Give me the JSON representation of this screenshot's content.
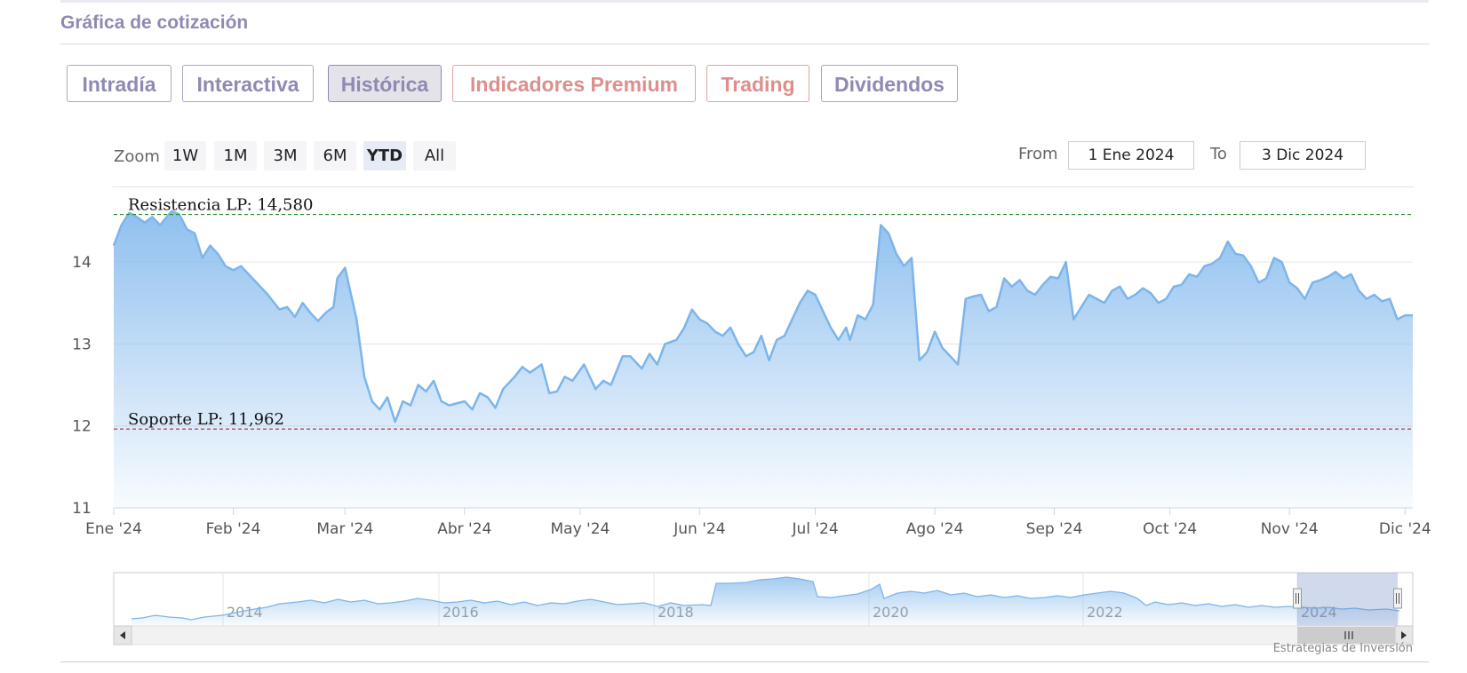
{
  "section": {
    "title": "Gráfica de cotización"
  },
  "tabs": [
    {
      "label": "Intradía",
      "style": "normal"
    },
    {
      "label": "Interactiva",
      "style": "normal"
    },
    {
      "label": "Histórica",
      "style": "active"
    },
    {
      "label": "Indicadores Premium",
      "style": "premium"
    },
    {
      "label": "Trading",
      "style": "premium"
    },
    {
      "label": "Dividendos",
      "style": "normal"
    }
  ],
  "range_selector": {
    "zoom_label": "Zoom",
    "buttons": [
      "1W",
      "1M",
      "3M",
      "6M",
      "YTD",
      "All"
    ],
    "selected": "YTD",
    "from_label": "From",
    "from_value": "1 Ene 2024",
    "to_label": "To",
    "to_value": "3 Dic 2024"
  },
  "colors": {
    "line": "#7cb5ec",
    "resistance": "#2e8b2e",
    "support": "#b22234",
    "tab_text": "#8e8ab3",
    "premium_text": "#dd8f8c"
  },
  "credit": "Estrategias de Inversión",
  "chart_data": {
    "type": "area",
    "title": "",
    "xlabel": "",
    "ylabel": "",
    "ylim": [
      11,
      14.9
    ],
    "y_ticks": [
      "11",
      "12",
      "13",
      "14"
    ],
    "x_ticks": [
      "Ene '24",
      "Feb '24",
      "Mar '24",
      "Abr '24",
      "May '24",
      "Jun '24",
      "Jul '24",
      "Ago '24",
      "Sep '24",
      "Oct '24",
      "Nov '24",
      "Dic '24"
    ],
    "x_start": "2024-01-01",
    "x_end": "2024-12-03",
    "grid": true,
    "annotations": [
      {
        "label": "Resistencia LP: 14,580",
        "value": 14.58,
        "kind": "resistance"
      },
      {
        "label": "Soporte LP: 11,962",
        "value": 11.962,
        "kind": "support"
      }
    ],
    "series": [
      {
        "points": [
          [
            "2024-01-01",
            14.2
          ],
          [
            "2024-01-03",
            14.45
          ],
          [
            "2024-01-05",
            14.6
          ],
          [
            "2024-01-07",
            14.55
          ],
          [
            "2024-01-09",
            14.48
          ],
          [
            "2024-01-11",
            14.55
          ],
          [
            "2024-01-13",
            14.45
          ],
          [
            "2024-01-16",
            14.62
          ],
          [
            "2024-01-18",
            14.58
          ],
          [
            "2024-01-20",
            14.4
          ],
          [
            "2024-01-22",
            14.35
          ],
          [
            "2024-01-24",
            14.05
          ],
          [
            "2024-01-26",
            14.2
          ],
          [
            "2024-01-28",
            14.1
          ],
          [
            "2024-01-30",
            13.95
          ],
          [
            "2024-02-01",
            13.9
          ],
          [
            "2024-02-03",
            13.95
          ],
          [
            "2024-02-05",
            13.85
          ],
          [
            "2024-02-08",
            13.7
          ],
          [
            "2024-02-10",
            13.6
          ],
          [
            "2024-02-13",
            13.42
          ],
          [
            "2024-02-15",
            13.45
          ],
          [
            "2024-02-17",
            13.33
          ],
          [
            "2024-02-19",
            13.5
          ],
          [
            "2024-02-21",
            13.38
          ],
          [
            "2024-02-23",
            13.28
          ],
          [
            "2024-02-25",
            13.38
          ],
          [
            "2024-02-27",
            13.45
          ],
          [
            "2024-02-28",
            13.8
          ],
          [
            "2024-03-01",
            13.93
          ],
          [
            "2024-03-04",
            13.3
          ],
          [
            "2024-03-06",
            12.6
          ],
          [
            "2024-03-08",
            12.3
          ],
          [
            "2024-03-10",
            12.2
          ],
          [
            "2024-03-12",
            12.35
          ],
          [
            "2024-03-14",
            12.05
          ],
          [
            "2024-03-16",
            12.3
          ],
          [
            "2024-03-18",
            12.25
          ],
          [
            "2024-03-20",
            12.5
          ],
          [
            "2024-03-22",
            12.42
          ],
          [
            "2024-03-24",
            12.55
          ],
          [
            "2024-03-26",
            12.3
          ],
          [
            "2024-03-28",
            12.25
          ],
          [
            "2024-04-01",
            12.3
          ],
          [
            "2024-04-03",
            12.2
          ],
          [
            "2024-04-05",
            12.4
          ],
          [
            "2024-04-07",
            12.35
          ],
          [
            "2024-04-09",
            12.22
          ],
          [
            "2024-04-11",
            12.45
          ],
          [
            "2024-04-14",
            12.6
          ],
          [
            "2024-04-16",
            12.72
          ],
          [
            "2024-04-18",
            12.65
          ],
          [
            "2024-04-21",
            12.75
          ],
          [
            "2024-04-23",
            12.4
          ],
          [
            "2024-04-25",
            12.42
          ],
          [
            "2024-04-27",
            12.6
          ],
          [
            "2024-04-29",
            12.55
          ],
          [
            "2024-05-02",
            12.75
          ],
          [
            "2024-05-05",
            12.45
          ],
          [
            "2024-05-07",
            12.55
          ],
          [
            "2024-05-09",
            12.5
          ],
          [
            "2024-05-12",
            12.85
          ],
          [
            "2024-05-14",
            12.85
          ],
          [
            "2024-05-17",
            12.7
          ],
          [
            "2024-05-19",
            12.88
          ],
          [
            "2024-05-21",
            12.75
          ],
          [
            "2024-05-23",
            13.0
          ],
          [
            "2024-05-26",
            13.05
          ],
          [
            "2024-05-28",
            13.2
          ],
          [
            "2024-05-30",
            13.42
          ],
          [
            "2024-06-01",
            13.3
          ],
          [
            "2024-06-03",
            13.25
          ],
          [
            "2024-06-05",
            13.15
          ],
          [
            "2024-06-07",
            13.1
          ],
          [
            "2024-06-09",
            13.2
          ],
          [
            "2024-06-11",
            13.0
          ],
          [
            "2024-06-13",
            12.85
          ],
          [
            "2024-06-15",
            12.9
          ],
          [
            "2024-06-17",
            13.1
          ],
          [
            "2024-06-19",
            12.8
          ],
          [
            "2024-06-21",
            13.05
          ],
          [
            "2024-06-23",
            13.1
          ],
          [
            "2024-06-25",
            13.3
          ],
          [
            "2024-06-27",
            13.5
          ],
          [
            "2024-06-29",
            13.65
          ],
          [
            "2024-07-01",
            13.6
          ],
          [
            "2024-07-03",
            13.4
          ],
          [
            "2024-07-05",
            13.2
          ],
          [
            "2024-07-07",
            13.05
          ],
          [
            "2024-07-09",
            13.2
          ],
          [
            "2024-07-10",
            13.05
          ],
          [
            "2024-07-12",
            13.35
          ],
          [
            "2024-07-14",
            13.3
          ],
          [
            "2024-07-16",
            13.48
          ],
          [
            "2024-07-18",
            14.45
          ],
          [
            "2024-07-20",
            14.35
          ],
          [
            "2024-07-22",
            14.1
          ],
          [
            "2024-07-24",
            13.95
          ],
          [
            "2024-07-26",
            14.05
          ],
          [
            "2024-07-28",
            12.8
          ],
          [
            "2024-07-30",
            12.9
          ],
          [
            "2024-08-01",
            13.15
          ],
          [
            "2024-08-03",
            12.95
          ],
          [
            "2024-08-05",
            12.85
          ],
          [
            "2024-08-07",
            12.75
          ],
          [
            "2024-08-09",
            13.55
          ],
          [
            "2024-08-11",
            13.58
          ],
          [
            "2024-08-13",
            13.6
          ],
          [
            "2024-08-15",
            13.4
          ],
          [
            "2024-08-17",
            13.45
          ],
          [
            "2024-08-19",
            13.8
          ],
          [
            "2024-08-21",
            13.7
          ],
          [
            "2024-08-23",
            13.78
          ],
          [
            "2024-08-25",
            13.65
          ],
          [
            "2024-08-27",
            13.6
          ],
          [
            "2024-08-29",
            13.72
          ],
          [
            "2024-08-31",
            13.82
          ],
          [
            "2024-09-02",
            13.8
          ],
          [
            "2024-09-04",
            14.0
          ],
          [
            "2024-09-06",
            13.3
          ],
          [
            "2024-09-08",
            13.45
          ],
          [
            "2024-09-10",
            13.6
          ],
          [
            "2024-09-12",
            13.55
          ],
          [
            "2024-09-14",
            13.5
          ],
          [
            "2024-09-16",
            13.65
          ],
          [
            "2024-09-18",
            13.7
          ],
          [
            "2024-09-20",
            13.55
          ],
          [
            "2024-09-22",
            13.6
          ],
          [
            "2024-09-24",
            13.68
          ],
          [
            "2024-09-26",
            13.62
          ],
          [
            "2024-09-28",
            13.5
          ],
          [
            "2024-09-30",
            13.55
          ],
          [
            "2024-10-02",
            13.7
          ],
          [
            "2024-10-04",
            13.72
          ],
          [
            "2024-10-06",
            13.85
          ],
          [
            "2024-10-08",
            13.82
          ],
          [
            "2024-10-10",
            13.95
          ],
          [
            "2024-10-12",
            13.98
          ],
          [
            "2024-10-14",
            14.05
          ],
          [
            "2024-10-16",
            14.25
          ],
          [
            "2024-10-18",
            14.1
          ],
          [
            "2024-10-20",
            14.08
          ],
          [
            "2024-10-22",
            13.95
          ],
          [
            "2024-10-24",
            13.75
          ],
          [
            "2024-10-26",
            13.8
          ],
          [
            "2024-10-28",
            14.05
          ],
          [
            "2024-10-30",
            14.0
          ],
          [
            "2024-11-01",
            13.75
          ],
          [
            "2024-11-03",
            13.68
          ],
          [
            "2024-11-05",
            13.55
          ],
          [
            "2024-11-07",
            13.75
          ],
          [
            "2024-11-09",
            13.78
          ],
          [
            "2024-11-11",
            13.82
          ],
          [
            "2024-11-13",
            13.88
          ],
          [
            "2024-11-15",
            13.8
          ],
          [
            "2024-11-17",
            13.85
          ],
          [
            "2024-11-19",
            13.65
          ],
          [
            "2024-11-21",
            13.55
          ],
          [
            "2024-11-23",
            13.6
          ],
          [
            "2024-11-25",
            13.52
          ],
          [
            "2024-11-27",
            13.55
          ],
          [
            "2024-11-29",
            13.3
          ],
          [
            "2024-12-01",
            13.35
          ]
        ]
      }
    ]
  },
  "navigator": {
    "x_ticks": [
      "2014",
      "2016",
      "2018",
      "2020",
      "2022",
      "2024"
    ]
  }
}
